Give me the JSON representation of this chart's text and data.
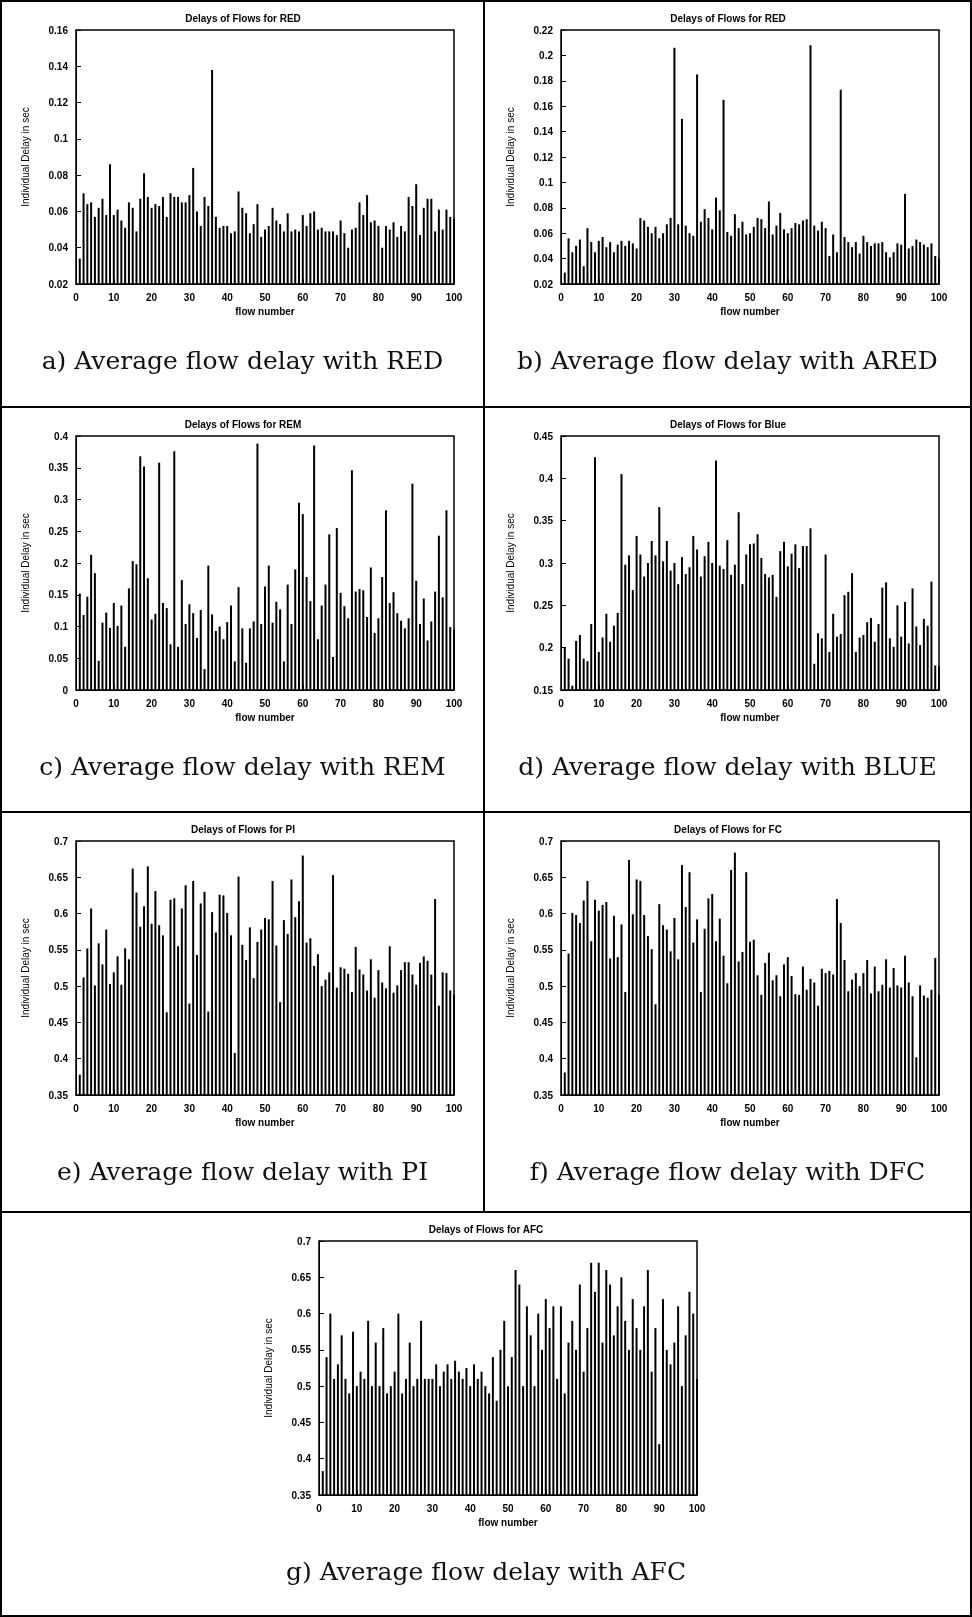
{
  "chart_data": [
    {
      "type": "bar",
      "title": "Delays of Flows for RED",
      "xlabel": "flow number",
      "ylabel": "Individual Delay in sec",
      "color": "#000000",
      "xlim": [
        0,
        100
      ],
      "xticks": [
        0,
        10,
        20,
        30,
        40,
        50,
        60,
        70,
        80,
        90,
        100
      ],
      "ylim": [
        0.02,
        0.16
      ],
      "yticks": [
        0.02,
        0.04,
        0.06,
        0.08,
        0.1,
        0.12,
        0.14,
        0.16
      ],
      "annotations": [
        "a) Average flow delay with RED"
      ],
      "x": [
        1,
        2,
        3,
        4,
        5,
        6,
        7,
        8,
        9,
        10,
        11,
        12,
        13,
        14,
        15,
        16,
        17,
        18,
        19,
        20,
        21,
        22,
        23,
        24,
        25,
        26,
        27,
        28,
        29,
        30,
        31,
        32,
        33,
        34,
        35,
        36,
        37,
        38,
        39,
        40,
        41,
        42,
        43,
        44,
        45,
        46,
        47,
        48,
        49,
        50,
        51,
        52,
        53,
        54,
        55,
        56,
        57,
        58,
        59,
        60,
        61,
        62,
        63,
        64,
        65,
        66,
        67,
        68,
        69,
        70,
        71,
        72,
        73,
        74,
        75,
        76,
        77,
        78,
        79,
        80,
        81,
        82,
        83,
        84,
        85,
        86,
        87,
        88,
        89,
        90,
        91,
        92,
        93,
        94,
        95,
        96,
        97,
        98,
        99,
        100
      ],
      "values": [
        0.034,
        0.07,
        0.064,
        0.065,
        0.057,
        0.062,
        0.067,
        0.058,
        0.086,
        0.058,
        0.061,
        0.055,
        0.051,
        0.065,
        0.062,
        0.049,
        0.067,
        0.081,
        0.068,
        0.062,
        0.064,
        0.063,
        0.068,
        0.057,
        0.07,
        0.068,
        0.068,
        0.065,
        0.065,
        0.069,
        0.084,
        0.06,
        0.052,
        0.068,
        0.063,
        0.138,
        0.057,
        0.051,
        0.052,
        0.052,
        0.048,
        0.049,
        0.071,
        0.062,
        0.059,
        0.048,
        0.053,
        0.064,
        0.046,
        0.05,
        0.052,
        0.062,
        0.055,
        0.053,
        0.049,
        0.059,
        0.049,
        0.05,
        0.049,
        0.058,
        0.052,
        0.059,
        0.06,
        0.05,
        0.051,
        0.049,
        0.049,
        0.049,
        0.047,
        0.055,
        0.048,
        0.04,
        0.05,
        0.051,
        0.065,
        0.058,
        0.069,
        0.054,
        0.055,
        0.052,
        0.04,
        0.052,
        0.05,
        0.054,
        0.046,
        0.052,
        0.049,
        0.068,
        0.063,
        0.075,
        0.047,
        0.062,
        0.067,
        0.067,
        0.049,
        0.061,
        0.05,
        0.061,
        0.057,
        0.056
      ]
    },
    {
      "type": "bar",
      "title": "Delays of Flows for RED",
      "xlabel": "flow number",
      "ylabel": "Individual Delay in sec",
      "color": "#000000",
      "xlim": [
        0,
        100
      ],
      "xticks": [
        0,
        10,
        20,
        30,
        40,
        50,
        60,
        70,
        80,
        90,
        100
      ],
      "ylim": [
        0.02,
        0.22
      ],
      "yticks": [
        0.02,
        0.04,
        0.06,
        0.08,
        0.1,
        0.12,
        0.14,
        0.16,
        0.18,
        0.2,
        0.22
      ],
      "annotations": [
        "b) Average flow delay with ARED"
      ],
      "x": [
        1,
        2,
        3,
        4,
        5,
        6,
        7,
        8,
        9,
        10,
        11,
        12,
        13,
        14,
        15,
        16,
        17,
        18,
        19,
        20,
        21,
        22,
        23,
        24,
        25,
        26,
        27,
        28,
        29,
        30,
        31,
        32,
        33,
        34,
        35,
        36,
        37,
        38,
        39,
        40,
        41,
        42,
        43,
        44,
        45,
        46,
        47,
        48,
        49,
        50,
        51,
        52,
        53,
        54,
        55,
        56,
        57,
        58,
        59,
        60,
        61,
        62,
        63,
        64,
        65,
        66,
        67,
        68,
        69,
        70,
        71,
        72,
        73,
        74,
        75,
        76,
        77,
        78,
        79,
        80,
        81,
        82,
        83,
        84,
        85,
        86,
        87,
        88,
        89,
        90,
        91,
        92,
        93,
        94,
        95,
        96,
        97,
        98,
        99,
        100
      ],
      "values": [
        0.029,
        0.056,
        0.045,
        0.05,
        0.055,
        0.034,
        0.064,
        0.053,
        0.045,
        0.054,
        0.057,
        0.049,
        0.053,
        0.045,
        0.051,
        0.054,
        0.05,
        0.054,
        0.052,
        0.048,
        0.072,
        0.07,
        0.065,
        0.06,
        0.065,
        0.056,
        0.06,
        0.067,
        0.072,
        0.206,
        0.067,
        0.15,
        0.066,
        0.06,
        0.058,
        0.185,
        0.069,
        0.079,
        0.072,
        0.063,
        0.088,
        0.078,
        0.165,
        0.061,
        0.058,
        0.075,
        0.064,
        0.069,
        0.059,
        0.06,
        0.065,
        0.072,
        0.071,
        0.064,
        0.085,
        0.059,
        0.066,
        0.076,
        0.063,
        0.06,
        0.064,
        0.068,
        0.067,
        0.07,
        0.071,
        0.208,
        0.066,
        0.062,
        0.069,
        0.064,
        0.042,
        0.059,
        0.045,
        0.173,
        0.057,
        0.053,
        0.049,
        0.053,
        0.044,
        0.058,
        0.053,
        0.05,
        0.052,
        0.052,
        0.053,
        0.045,
        0.041,
        0.045,
        0.052,
        0.051,
        0.091,
        0.048,
        0.05,
        0.055,
        0.053,
        0.051,
        0.049,
        0.052,
        0.042,
        0.04
      ]
    },
    {
      "type": "bar",
      "title": "Delays of Flows for REM",
      "xlabel": "flow number",
      "ylabel": "Individual Delay in sec",
      "color": "#000000",
      "xlim": [
        0,
        100
      ],
      "xticks": [
        0,
        10,
        20,
        30,
        40,
        50,
        60,
        70,
        80,
        90,
        100
      ],
      "ylim": [
        0,
        0.4
      ],
      "yticks": [
        0,
        0.05,
        0.1,
        0.15,
        0.2,
        0.25,
        0.3,
        0.35,
        0.4
      ],
      "annotations": [
        "c) Average flow delay with REM"
      ],
      "x": [
        1,
        2,
        3,
        4,
        5,
        6,
        7,
        8,
        9,
        10,
        11,
        12,
        13,
        14,
        15,
        16,
        17,
        18,
        19,
        20,
        21,
        22,
        23,
        24,
        25,
        26,
        27,
        28,
        29,
        30,
        31,
        32,
        33,
        34,
        35,
        36,
        37,
        38,
        39,
        40,
        41,
        42,
        43,
        44,
        45,
        46,
        47,
        48,
        49,
        50,
        51,
        52,
        53,
        54,
        55,
        56,
        57,
        58,
        59,
        60,
        61,
        62,
        63,
        64,
        65,
        66,
        67,
        68,
        69,
        70,
        71,
        72,
        73,
        74,
        75,
        76,
        77,
        78,
        79,
        80,
        81,
        82,
        83,
        84,
        85,
        86,
        87,
        88,
        89,
        90,
        91,
        92,
        93,
        94,
        95,
        96,
        97,
        98,
        99,
        100
      ],
      "values": [
        0.152,
        0.118,
        0.147,
        0.213,
        0.184,
        0.046,
        0.106,
        0.122,
        0.098,
        0.137,
        0.101,
        0.133,
        0.068,
        0.16,
        0.203,
        0.198,
        0.368,
        0.352,
        0.176,
        0.111,
        0.12,
        0.358,
        0.137,
        0.129,
        0.072,
        0.376,
        0.068,
        0.173,
        0.104,
        0.135,
        0.121,
        0.082,
        0.126,
        0.033,
        0.196,
        0.119,
        0.093,
        0.1,
        0.08,
        0.107,
        0.133,
        0.045,
        0.162,
        0.097,
        0.043,
        0.097,
        0.108,
        0.388,
        0.104,
        0.163,
        0.196,
        0.106,
        0.139,
        0.127,
        0.045,
        0.166,
        0.104,
        0.19,
        0.295,
        0.277,
        0.178,
        0.14,
        0.385,
        0.08,
        0.133,
        0.166,
        0.245,
        0.052,
        0.255,
        0.153,
        0.132,
        0.113,
        0.346,
        0.155,
        0.159,
        0.157,
        0.115,
        0.193,
        0.09,
        0.113,
        0.178,
        0.283,
        0.137,
        0.154,
        0.121,
        0.109,
        0.097,
        0.113,
        0.325,
        0.172,
        0.104,
        0.144,
        0.078,
        0.108,
        0.155,
        0.243,
        0.146,
        0.283,
        0.099,
        0.095
      ]
    },
    {
      "type": "bar",
      "title": "Delays of Flows for Blue",
      "xlabel": "flow number",
      "ylabel": "Individual Delay in sec",
      "color": "#000000",
      "xlim": [
        0,
        100
      ],
      "xticks": [
        0,
        10,
        20,
        30,
        40,
        50,
        60,
        70,
        80,
        90,
        100
      ],
      "ylim": [
        0.15,
        0.45
      ],
      "yticks": [
        0.15,
        0.2,
        0.25,
        0.3,
        0.35,
        0.4,
        0.45
      ],
      "annotations": [
        "d) Average flow delay with BLUE"
      ],
      "x": [
        1,
        2,
        3,
        4,
        5,
        6,
        7,
        8,
        9,
        10,
        11,
        12,
        13,
        14,
        15,
        16,
        17,
        18,
        19,
        20,
        21,
        22,
        23,
        24,
        25,
        26,
        27,
        28,
        29,
        30,
        31,
        32,
        33,
        34,
        35,
        36,
        37,
        38,
        39,
        40,
        41,
        42,
        43,
        44,
        45,
        46,
        47,
        48,
        49,
        50,
        51,
        52,
        53,
        54,
        55,
        56,
        57,
        58,
        59,
        60,
        61,
        62,
        63,
        64,
        65,
        66,
        67,
        68,
        69,
        70,
        71,
        72,
        73,
        74,
        75,
        76,
        77,
        78,
        79,
        80,
        81,
        82,
        83,
        84,
        85,
        86,
        87,
        88,
        89,
        90,
        91,
        92,
        93,
        94,
        95,
        96,
        97,
        98,
        99,
        100
      ],
      "values": [
        0.2,
        0.187,
        0.155,
        0.208,
        0.215,
        0.187,
        0.184,
        0.228,
        0.425,
        0.195,
        0.212,
        0.24,
        0.207,
        0.226,
        0.241,
        0.405,
        0.298,
        0.309,
        0.268,
        0.332,
        0.31,
        0.284,
        0.3,
        0.326,
        0.309,
        0.366,
        0.302,
        0.326,
        0.291,
        0.3,
        0.275,
        0.307,
        0.287,
        0.295,
        0.332,
        0.316,
        0.284,
        0.308,
        0.325,
        0.3,
        0.421,
        0.297,
        0.293,
        0.327,
        0.286,
        0.298,
        0.36,
        0.275,
        0.31,
        0.322,
        0.323,
        0.334,
        0.306,
        0.287,
        0.283,
        0.286,
        0.26,
        0.314,
        0.325,
        0.296,
        0.311,
        0.322,
        0.294,
        0.32,
        0.32,
        0.341,
        0.181,
        0.217,
        0.211,
        0.31,
        0.195,
        0.24,
        0.213,
        0.216,
        0.262,
        0.266,
        0.288,
        0.195,
        0.212,
        0.215,
        0.23,
        0.235,
        0.207,
        0.228,
        0.271,
        0.277,
        0.211,
        0.201,
        0.25,
        0.213,
        0.254,
        0.205,
        0.27,
        0.225,
        0.203,
        0.234,
        0.226,
        0.278,
        0.179,
        0.178
      ]
    },
    {
      "type": "bar",
      "title": "Delays of Flows for PI",
      "xlabel": "flow number",
      "ylabel": "Individual Delay in sec",
      "color": "#000000",
      "xlim": [
        0,
        100
      ],
      "xticks": [
        0,
        10,
        20,
        30,
        40,
        50,
        60,
        70,
        80,
        90,
        100
      ],
      "ylim": [
        0.35,
        0.7
      ],
      "yticks": [
        0.35,
        0.4,
        0.45,
        0.5,
        0.55,
        0.6,
        0.65,
        0.7
      ],
      "annotations": [
        "e) Average flow delay with PI"
      ],
      "x": [
        1,
        2,
        3,
        4,
        5,
        6,
        7,
        8,
        9,
        10,
        11,
        12,
        13,
        14,
        15,
        16,
        17,
        18,
        19,
        20,
        21,
        22,
        23,
        24,
        25,
        26,
        27,
        28,
        29,
        30,
        31,
        32,
        33,
        34,
        35,
        36,
        37,
        38,
        39,
        40,
        41,
        42,
        43,
        44,
        45,
        46,
        47,
        48,
        49,
        50,
        51,
        52,
        53,
        54,
        55,
        56,
        57,
        58,
        59,
        60,
        61,
        62,
        63,
        64,
        65,
        66,
        67,
        68,
        69,
        70,
        71,
        72,
        73,
        74,
        75,
        76,
        77,
        78,
        79,
        80,
        81,
        82,
        83,
        84,
        85,
        86,
        87,
        88,
        89,
        90,
        91,
        92,
        93,
        94,
        95,
        96,
        97,
        98,
        99,
        100
      ],
      "values": [
        0.378,
        0.512,
        0.552,
        0.607,
        0.501,
        0.559,
        0.53,
        0.578,
        0.503,
        0.519,
        0.541,
        0.502,
        0.552,
        0.537,
        0.662,
        0.629,
        0.582,
        0.61,
        0.665,
        0.586,
        0.631,
        0.584,
        0.57,
        0.464,
        0.619,
        0.621,
        0.555,
        0.607,
        0.639,
        0.476,
        0.645,
        0.543,
        0.614,
        0.63,
        0.465,
        0.602,
        0.574,
        0.626,
        0.625,
        0.601,
        0.57,
        0.408,
        0.651,
        0.557,
        0.536,
        0.581,
        0.511,
        0.561,
        0.578,
        0.594,
        0.592,
        0.645,
        0.556,
        0.478,
        0.591,
        0.572,
        0.647,
        0.595,
        0.617,
        0.68,
        0.56,
        0.566,
        0.528,
        0.544,
        0.5,
        0.509,
        0.519,
        0.653,
        0.498,
        0.526,
        0.524,
        0.517,
        0.492,
        0.554,
        0.523,
        0.516,
        0.494,
        0.537,
        0.484,
        0.522,
        0.505,
        0.497,
        0.555,
        0.491,
        0.501,
        0.522,
        0.533,
        0.533,
        0.516,
        0.502,
        0.532,
        0.541,
        0.535,
        0.516,
        0.62,
        0.473,
        0.519,
        0.518,
        0.494,
        0.488
      ]
    },
    {
      "type": "bar",
      "title": "Delays of Flows for FC",
      "xlabel": "flow number",
      "ylabel": "Individual Delay in sec",
      "color": "#000000",
      "xlim": [
        0,
        100
      ],
      "xticks": [
        0,
        10,
        20,
        30,
        40,
        50,
        60,
        70,
        80,
        90,
        100
      ],
      "ylim": [
        0.35,
        0.7
      ],
      "yticks": [
        0.35,
        0.4,
        0.45,
        0.5,
        0.55,
        0.6,
        0.65,
        0.7
      ],
      "annotations": [
        "f) Average flow delay with DFC"
      ],
      "x": [
        1,
        2,
        3,
        4,
        5,
        6,
        7,
        8,
        9,
        10,
        11,
        12,
        13,
        14,
        15,
        16,
        17,
        18,
        19,
        20,
        21,
        22,
        23,
        24,
        25,
        26,
        27,
        28,
        29,
        30,
        31,
        32,
        33,
        34,
        35,
        36,
        37,
        38,
        39,
        40,
        41,
        42,
        43,
        44,
        45,
        46,
        47,
        48,
        49,
        50,
        51,
        52,
        53,
        54,
        55,
        56,
        57,
        58,
        59,
        60,
        61,
        62,
        63,
        64,
        65,
        66,
        67,
        68,
        69,
        70,
        71,
        72,
        73,
        74,
        75,
        76,
        77,
        78,
        79,
        80,
        81,
        82,
        83,
        84,
        85,
        86,
        87,
        88,
        89,
        90,
        91,
        92,
        93,
        94,
        95,
        96,
        97,
        98,
        99,
        100
      ],
      "values": [
        0.381,
        0.545,
        0.601,
        0.598,
        0.587,
        0.618,
        0.645,
        0.562,
        0.619,
        0.604,
        0.612,
        0.616,
        0.538,
        0.597,
        0.54,
        0.585,
        0.492,
        0.674,
        0.599,
        0.647,
        0.645,
        0.598,
        0.569,
        0.551,
        0.475,
        0.613,
        0.584,
        0.578,
        0.548,
        0.594,
        0.537,
        0.667,
        0.609,
        0.657,
        0.56,
        0.592,
        0.492,
        0.579,
        0.621,
        0.627,
        0.562,
        0.593,
        0.542,
        0.504,
        0.66,
        0.684,
        0.534,
        0.547,
        0.657,
        0.561,
        0.564,
        0.515,
        0.488,
        0.532,
        0.546,
        0.508,
        0.515,
        0.486,
        0.53,
        0.54,
        0.514,
        0.489,
        0.488,
        0.527,
        0.495,
        0.51,
        0.505,
        0.473,
        0.524,
        0.518,
        0.521,
        0.516,
        0.62,
        0.587,
        0.536,
        0.493,
        0.509,
        0.518,
        0.5,
        0.518,
        0.536,
        0.49,
        0.527,
        0.493,
        0.502,
        0.537,
        0.498,
        0.525,
        0.501,
        0.498,
        0.542,
        0.505,
        0.486,
        0.402,
        0.501,
        0.487,
        0.484,
        0.495,
        0.539,
        0.488
      ]
    },
    {
      "type": "bar",
      "title": "Delays of Flows for AFC",
      "xlabel": "flow number",
      "ylabel": "Individual Delay in sec",
      "color": "#000000",
      "xlim": [
        0,
        100
      ],
      "xticks": [
        0,
        10,
        20,
        30,
        40,
        50,
        60,
        70,
        80,
        90,
        100
      ],
      "ylim": [
        0.35,
        0.7
      ],
      "yticks": [
        0.35,
        0.4,
        0.45,
        0.5,
        0.55,
        0.6,
        0.65,
        0.7
      ],
      "annotations": [
        "g) Average flow delay with AFC"
      ],
      "x": [
        1,
        2,
        3,
        4,
        5,
        6,
        7,
        8,
        9,
        10,
        11,
        12,
        13,
        14,
        15,
        16,
        17,
        18,
        19,
        20,
        21,
        22,
        23,
        24,
        25,
        26,
        27,
        28,
        29,
        30,
        31,
        32,
        33,
        34,
        35,
        36,
        37,
        38,
        39,
        40,
        41,
        42,
        43,
        44,
        45,
        46,
        47,
        48,
        49,
        50,
        51,
        52,
        53,
        54,
        55,
        56,
        57,
        58,
        59,
        60,
        61,
        62,
        63,
        64,
        65,
        66,
        67,
        68,
        69,
        70,
        71,
        72,
        73,
        74,
        75,
        76,
        77,
        78,
        79,
        80,
        81,
        82,
        83,
        84,
        85,
        86,
        87,
        88,
        89,
        90,
        91,
        92,
        93,
        94,
        95,
        96,
        97,
        98,
        99,
        100
      ],
      "values": [
        0.383,
        0.54,
        0.6,
        0.51,
        0.53,
        0.57,
        0.51,
        0.49,
        0.575,
        0.5,
        0.52,
        0.51,
        0.59,
        0.5,
        0.56,
        0.5,
        0.58,
        0.49,
        0.5,
        0.52,
        0.6,
        0.49,
        0.51,
        0.56,
        0.5,
        0.51,
        0.59,
        0.51,
        0.51,
        0.51,
        0.53,
        0.5,
        0.52,
        0.53,
        0.51,
        0.535,
        0.52,
        0.51,
        0.525,
        0.5,
        0.53,
        0.51,
        0.52,
        0.5,
        0.49,
        0.54,
        0.48,
        0.55,
        0.59,
        0.5,
        0.54,
        0.66,
        0.64,
        0.5,
        0.61,
        0.57,
        0.5,
        0.6,
        0.55,
        0.62,
        0.58,
        0.61,
        0.51,
        0.61,
        0.49,
        0.56,
        0.59,
        0.55,
        0.64,
        0.52,
        0.58,
        0.67,
        0.63,
        0.67,
        0.56,
        0.66,
        0.64,
        0.57,
        0.61,
        0.65,
        0.59,
        0.55,
        0.62,
        0.58,
        0.55,
        0.61,
        0.66,
        0.52,
        0.58,
        0.42,
        0.62,
        0.55,
        0.53,
        0.56,
        0.61,
        0.5,
        0.57,
        0.63,
        0.6,
        0.51
      ]
    }
  ]
}
